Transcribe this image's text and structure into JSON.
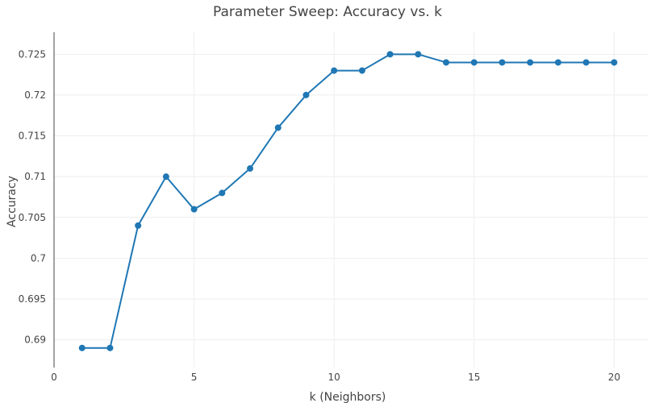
{
  "chart_data": {
    "type": "line",
    "title": "Parameter Sweep: Accuracy vs. k",
    "xlabel": "k (Neighbors)",
    "ylabel": "Accuracy",
    "xlim": [
      0,
      21.2
    ],
    "ylim": [
      0.6866,
      0.7277
    ],
    "xticks": [
      0,
      5,
      10,
      15,
      20
    ],
    "yticks": [
      0.69,
      0.695,
      0.7,
      0.705,
      0.71,
      0.715,
      0.72,
      0.725
    ],
    "ytick_labels": [
      "0.69",
      "0.695",
      "0.7",
      "0.705",
      "0.71",
      "0.715",
      "0.72",
      "0.725"
    ],
    "grid": true,
    "legend": "none",
    "series": [
      {
        "color": "#1f77b4",
        "x": [
          1,
          2,
          3,
          4,
          5,
          6,
          7,
          8,
          9,
          10,
          11,
          12,
          13,
          14,
          15,
          16,
          17,
          18,
          19,
          20
        ],
        "y": [
          0.689,
          0.689,
          0.704,
          0.71,
          0.706,
          0.708,
          0.711,
          0.716,
          0.72,
          0.723,
          0.723,
          0.725,
          0.725,
          0.724,
          0.724,
          0.724,
          0.724,
          0.724,
          0.724,
          0.724
        ]
      }
    ],
    "colors": {
      "grid": "#eeeeee",
      "axis": "#444444",
      "text": "#444444"
    }
  }
}
